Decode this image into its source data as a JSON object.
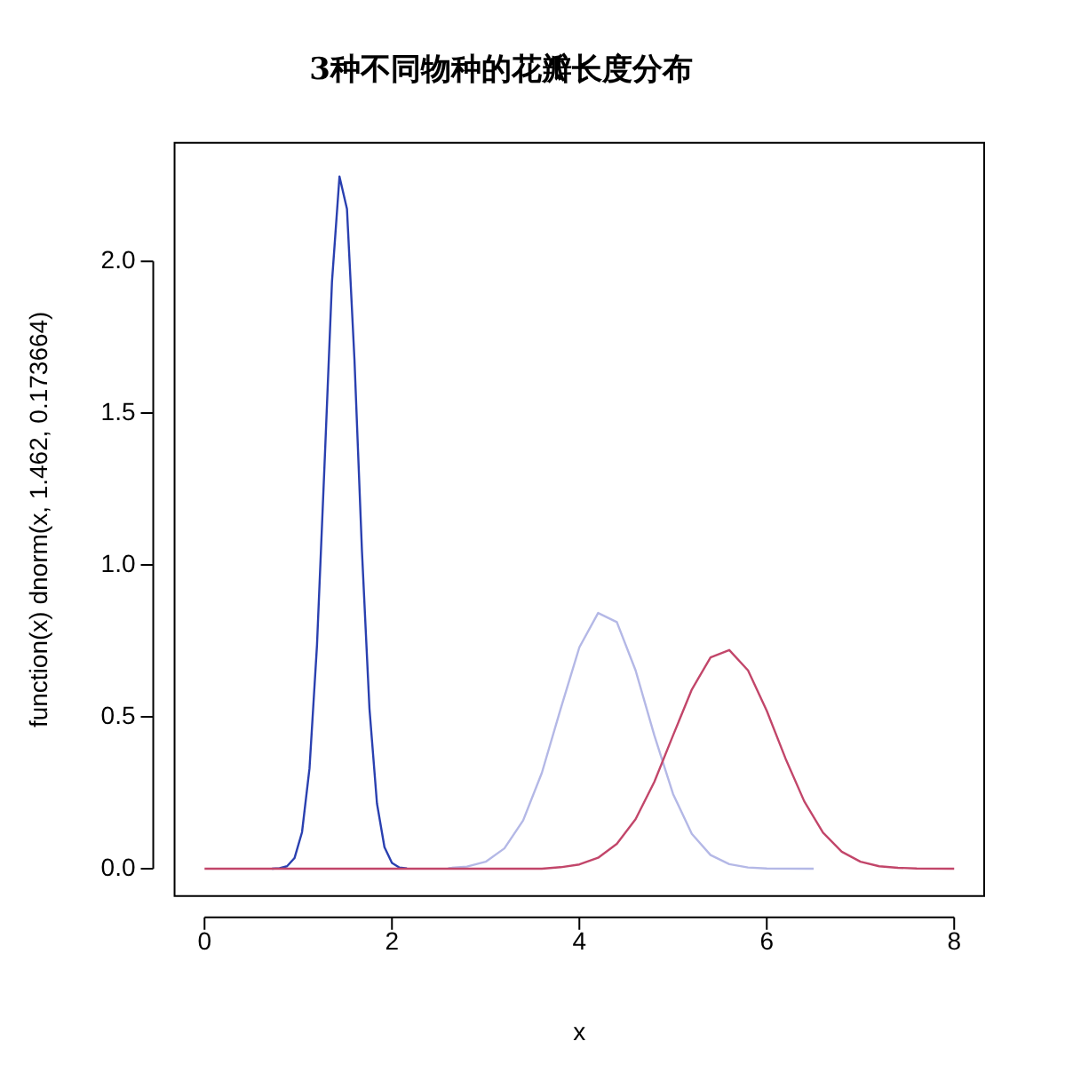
{
  "chart_data": {
    "type": "line",
    "title": "3种不同物种的花瓣长度分布",
    "xlabel": "x",
    "ylabel": "function(x) dnorm(x, 1.462, 0.173664)",
    "xlim": [
      -0.32,
      8.32
    ],
    "xticks": [
      0,
      2,
      4,
      6,
      8
    ],
    "ylim": [
      -0.09,
      2.39
    ],
    "yticks": [
      {
        "value": 0,
        "label": "0.0"
      },
      {
        "value": 0.5,
        "label": "0.5"
      },
      {
        "value": 1,
        "label": "1.0"
      },
      {
        "value": 1.5,
        "label": "1.5"
      },
      {
        "value": 2,
        "label": "2.0"
      }
    ],
    "grid": false,
    "legend": false,
    "marker": "none",
    "line_style": "solid",
    "series": [
      {
        "color": "#c2466a",
        "x": [
          0,
          3.6,
          3.8,
          4.0,
          4.2,
          4.4,
          4.6,
          4.8,
          5.0,
          5.2,
          5.4,
          5.6,
          5.8,
          6.0,
          6.2,
          6.4,
          6.6,
          6.8,
          7.0,
          7.2,
          7.4,
          7.6,
          8.0
        ],
        "values": [
          0,
          0,
          0.005,
          0.014,
          0.036,
          0.082,
          0.163,
          0.286,
          0.439,
          0.59,
          0.696,
          0.72,
          0.653,
          0.52,
          0.363,
          0.222,
          0.119,
          0.056,
          0.023,
          0.008,
          0.003,
          0.001,
          0
        ]
      },
      {
        "color": "#b4b8e6",
        "x": [
          2.6,
          2.8,
          3.0,
          3.2,
          3.4,
          3.6,
          3.8,
          4.0,
          4.2,
          4.4,
          4.6,
          4.8,
          5.0,
          5.2,
          5.4,
          5.6,
          5.8,
          6.0,
          6.5
        ],
        "values": [
          0.002,
          0.007,
          0.023,
          0.067,
          0.159,
          0.316,
          0.526,
          0.729,
          0.842,
          0.812,
          0.653,
          0.439,
          0.246,
          0.115,
          0.045,
          0.015,
          0.004,
          0.001,
          0
        ]
      },
      {
        "color": "#2a40b0",
        "x": [
          0.72,
          0.8,
          0.88,
          0.96,
          1.04,
          1.12,
          1.2,
          1.28,
          1.36,
          1.44,
          1.52,
          1.6,
          1.68,
          1.76,
          1.84,
          1.92,
          2.0,
          2.08,
          2.16
        ],
        "values": [
          0,
          0.002,
          0.008,
          0.035,
          0.12,
          0.33,
          0.736,
          1.327,
          1.933,
          2.279,
          2.172,
          1.675,
          1.045,
          0.527,
          0.215,
          0.071,
          0.019,
          0.004,
          0.001
        ]
      }
    ]
  }
}
